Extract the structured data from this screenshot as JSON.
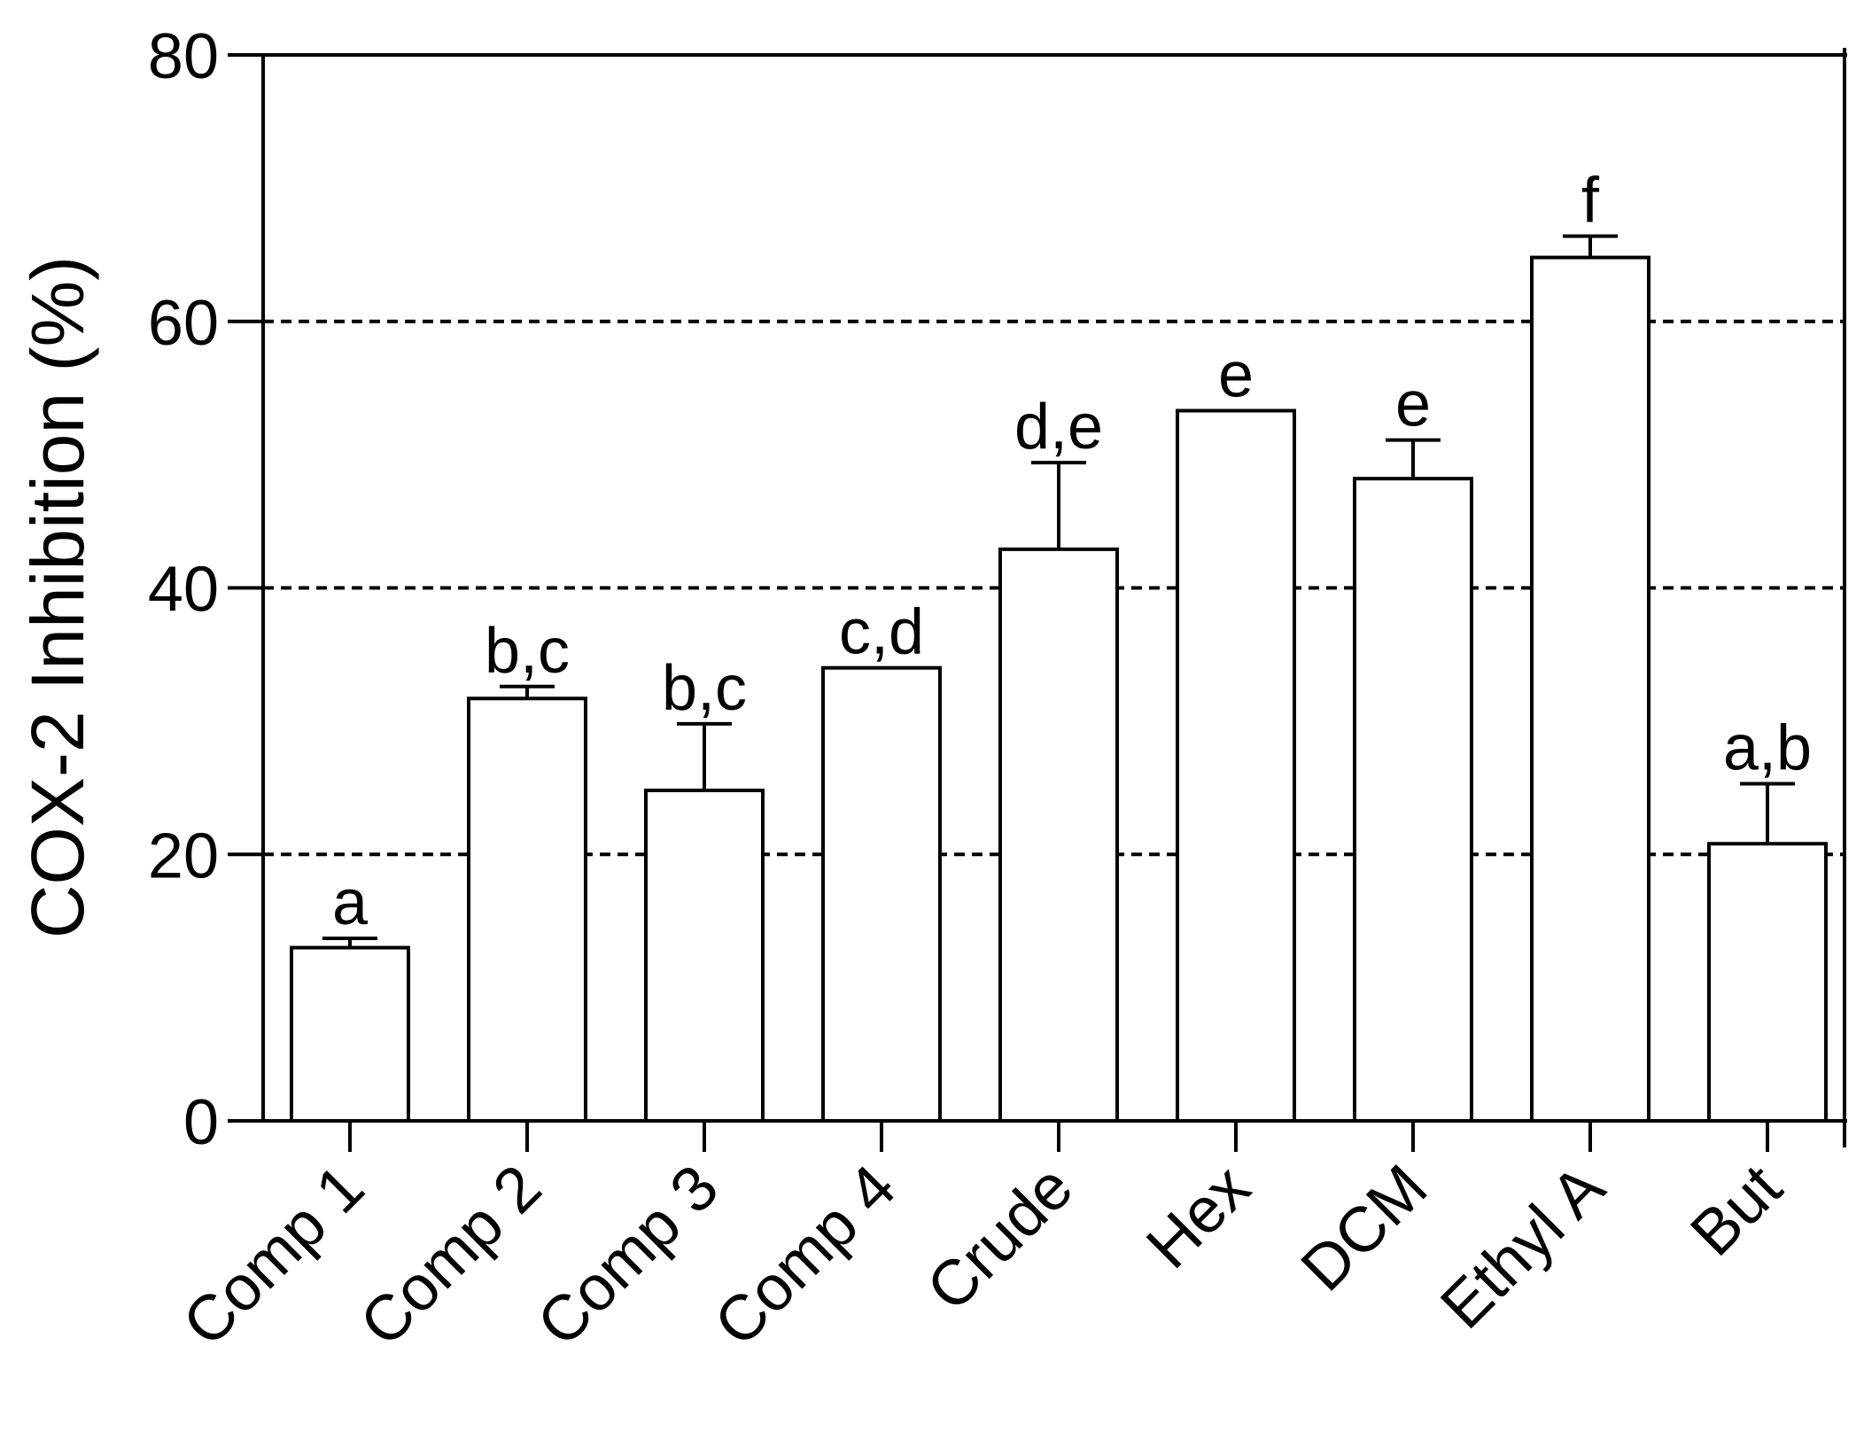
{
  "chart_data": {
    "type": "bar",
    "ylabel": "COX-2 Inhibition (%)",
    "xlabel": "",
    "ylim": [
      0,
      80
    ],
    "yticks": [
      0,
      20,
      40,
      60,
      80
    ],
    "ytick_labels": [
      "0",
      "20",
      "40",
      "60",
      "80"
    ],
    "grid": {
      "y_dashed_at": [
        20,
        40,
        60
      ]
    },
    "categories": [
      "Comp 1",
      "Comp 2",
      "Comp 3",
      "Comp 4",
      "Crude",
      "Hex",
      "DCM",
      "Ethyl A",
      "But"
    ],
    "values": [
      13.0,
      31.7,
      24.8,
      34.0,
      42.9,
      53.3,
      48.2,
      64.8,
      20.8
    ],
    "errors": [
      0.7,
      0.9,
      5.0,
      0.0,
      6.5,
      0.0,
      2.9,
      1.6,
      4.5
    ],
    "significance_labels": [
      "a",
      "b,c",
      "b,c",
      "c,d",
      "d,e",
      "e",
      "e",
      "f",
      "a,b"
    ],
    "colors": {
      "bar_fill": "#ffffff",
      "bar_stroke": "#000000"
    }
  }
}
